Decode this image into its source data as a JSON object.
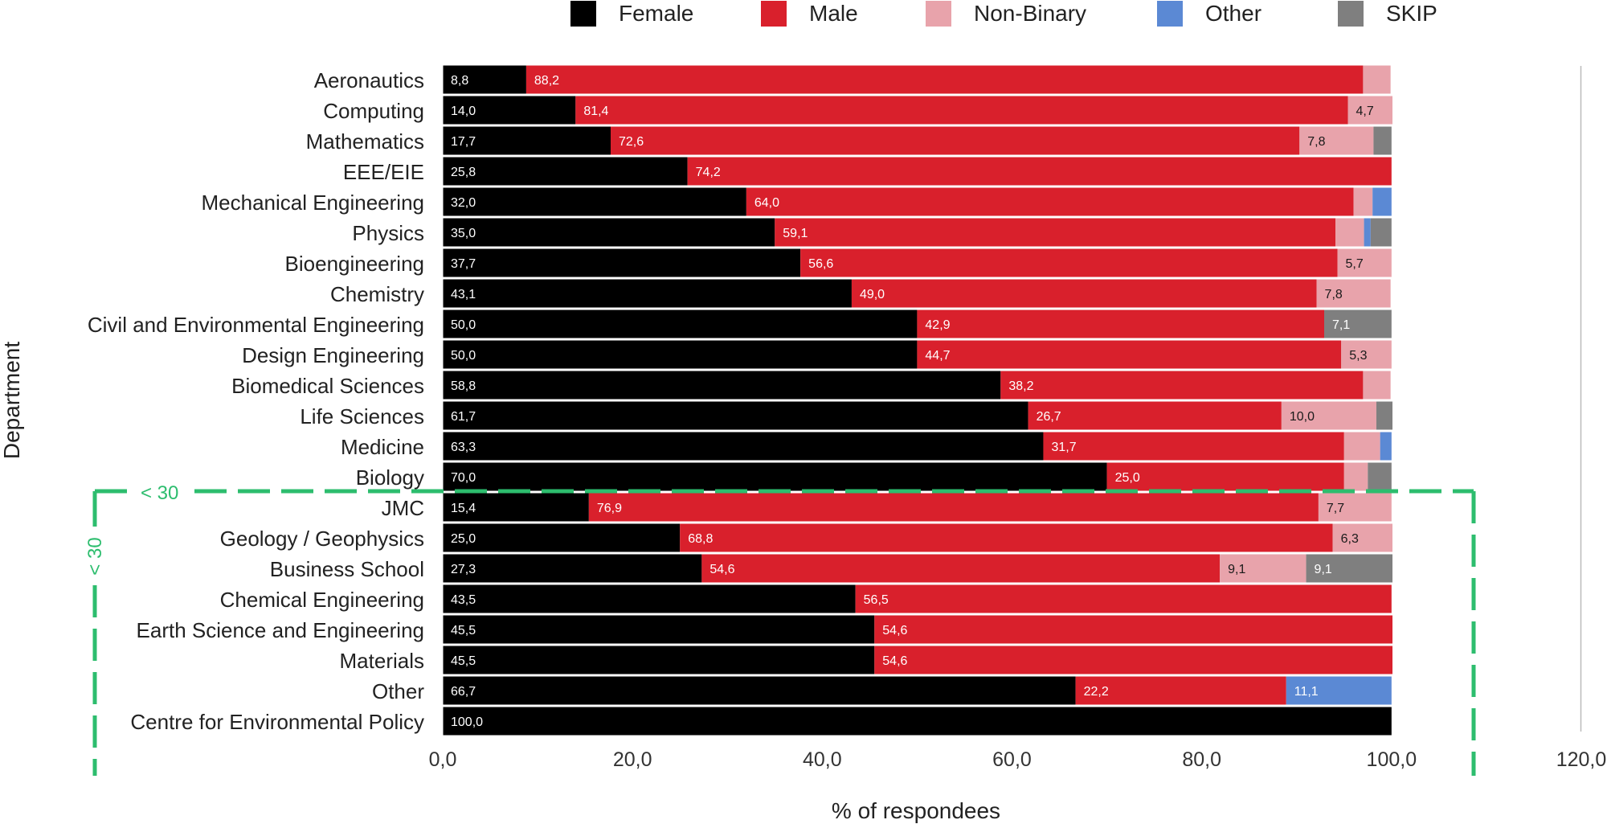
{
  "chart_data": {
    "type": "bar",
    "orientation": "horizontal",
    "stacked": true,
    "xlabel": "% of respondees",
    "ylabel": "Department",
    "xlim": [
      0,
      120
    ],
    "xticks": [
      0,
      20,
      40,
      60,
      80,
      100,
      120
    ],
    "xtick_labels": [
      "0,0",
      "20,0",
      "40,0",
      "60,0",
      "80,0",
      "100,0",
      "120,0"
    ],
    "legend_position": "top",
    "categories": [
      "Aeronautics",
      "Computing",
      "Mathematics",
      "EEE/EIE",
      "Mechanical Engineering",
      "Physics",
      "Bioengineering",
      "Chemistry",
      "Civil and Environmental Engineering",
      "Design Engineering",
      "Biomedical Sciences",
      "Life Sciences",
      "Medicine",
      "Biology",
      "JMC",
      "Geology / Geophysics",
      "Business School",
      "Chemical Engineering",
      "Earth Science and Engineering",
      "Materials",
      "Other",
      "Centre for Environmental Policy"
    ],
    "series": [
      {
        "name": "Female",
        "color": "#000000",
        "values": [
          8.8,
          14.0,
          17.7,
          25.8,
          32.0,
          35.0,
          37.7,
          43.1,
          50.0,
          50.0,
          58.8,
          61.7,
          63.3,
          70.0,
          15.4,
          25.0,
          27.3,
          43.5,
          45.5,
          45.5,
          66.7,
          100.0
        ],
        "labels": [
          "8,8",
          "14,0",
          "17,7",
          "25,8",
          "32,0",
          "35,0",
          "37,7",
          "43,1",
          "50,0",
          "50,0",
          "58,8",
          "61,7",
          "63,3",
          "70,0",
          "15,4",
          "25,0",
          "27,3",
          "43,5",
          "45,5",
          "45,5",
          "66,7",
          "100,0"
        ]
      },
      {
        "name": "Male",
        "color": "#d9202c",
        "values": [
          88.2,
          81.4,
          72.6,
          74.2,
          64.0,
          59.1,
          56.6,
          49.0,
          42.9,
          44.7,
          38.2,
          26.7,
          31.7,
          25.0,
          76.9,
          68.8,
          54.6,
          56.5,
          54.6,
          54.6,
          22.2,
          0
        ],
        "labels": [
          "88,2",
          "81,4",
          "72,6",
          "74,2",
          "64,0",
          "59,1",
          "56,6",
          "49,0",
          "42,9",
          "44,7",
          "38,2",
          "26,7",
          "31,7",
          "25,0",
          "76,9",
          "68,8",
          "54,6",
          "56,5",
          "54,6",
          "54,6",
          "22,2",
          ""
        ]
      },
      {
        "name": "Non-Binary",
        "color": "#e8a3ab",
        "values": [
          2.9,
          4.7,
          7.8,
          0,
          2.0,
          3.0,
          5.7,
          7.8,
          0,
          5.3,
          2.9,
          10.0,
          3.8,
          2.5,
          7.7,
          6.3,
          9.1,
          0,
          0,
          0,
          0,
          0
        ],
        "labels": [
          "",
          "4,7",
          "7,8",
          "",
          "",
          "",
          "5,7",
          "7,8",
          "",
          "5,3",
          "",
          "10,0",
          "",
          "",
          "7,7",
          "6,3",
          "9,1",
          "",
          "",
          "",
          "",
          ""
        ]
      },
      {
        "name": "Other",
        "color": "#5b89d4",
        "values": [
          0,
          0,
          0,
          0,
          2.0,
          0.7,
          0,
          0,
          0,
          0,
          0,
          0,
          1.2,
          0,
          0,
          0,
          0,
          0,
          0,
          0,
          11.1,
          0
        ],
        "labels": [
          "",
          "",
          "",
          "",
          "",
          "",
          "",
          "",
          "",
          "",
          "",
          "",
          "",
          "",
          "",
          "",
          "",
          "",
          "",
          "",
          "11,1",
          ""
        ]
      },
      {
        "name": "SKIP",
        "color": "#7f7f7f",
        "values": [
          0,
          0,
          1.9,
          0,
          0,
          2.2,
          0,
          0,
          7.1,
          0,
          0,
          1.7,
          0,
          2.5,
          0,
          0,
          9.1,
          0,
          0,
          0,
          0,
          0
        ],
        "labels": [
          "",
          "",
          "",
          "",
          "",
          "",
          "",
          "",
          "7,1",
          "",
          "",
          "",
          "",
          "",
          "",
          "",
          "9,1",
          "",
          "",
          "",
          "",
          ""
        ]
      }
    ],
    "annotation": {
      "label_top": "< 30",
      "label_side": "< 30",
      "color": "#2dbd6e",
      "applies_to": [
        "JMC",
        "Geology / Geophysics",
        "Business School",
        "Chemical Engineering",
        "Earth Science and Engineering",
        "Materials",
        "Other",
        "Centre for Environmental Policy"
      ]
    }
  }
}
